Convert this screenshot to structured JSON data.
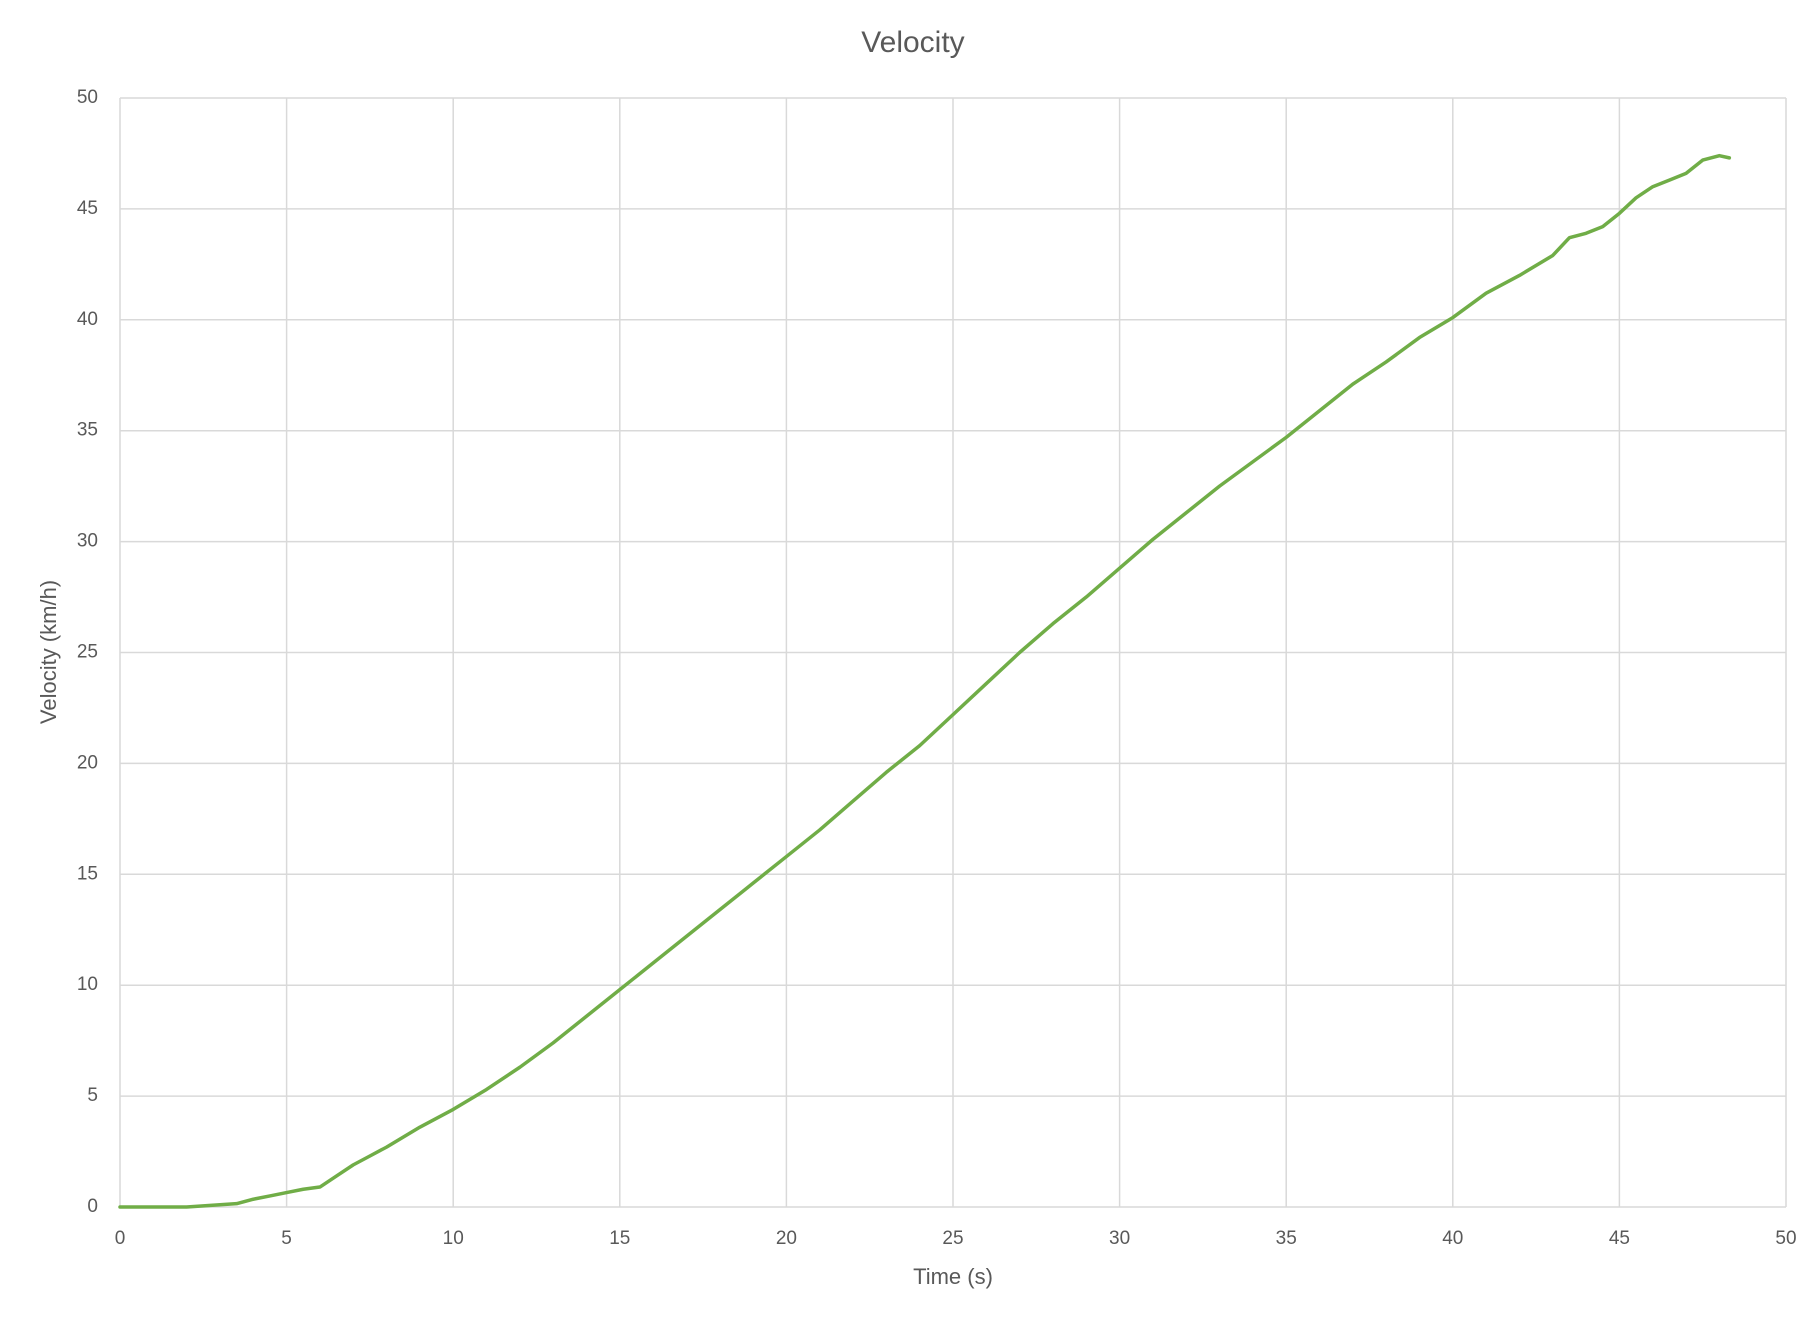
{
  "chart_data": {
    "type": "line",
    "title": "Velocity",
    "x_label": "Time (s)",
    "y_label": "Velocity (km/h)",
    "x": [
      0,
      1,
      2,
      2.5,
      3,
      3.5,
      4,
      4.5,
      5,
      5.5,
      6,
      6.5,
      7,
      7.5,
      8,
      9,
      10,
      11,
      12,
      13,
      14,
      15,
      16,
      17,
      18,
      19,
      20,
      21,
      22,
      23,
      24,
      25,
      26,
      27,
      28,
      29,
      30,
      31,
      32,
      33,
      34,
      35,
      36,
      37,
      38,
      39,
      40,
      41,
      42,
      43,
      43.5,
      44,
      44.5,
      45,
      45.5,
      46,
      46.5,
      47,
      47.5,
      48,
      48.3
    ],
    "series": [
      {
        "name": "Velocity",
        "color": "#70ad47",
        "values": [
          0,
          0,
          0,
          0.05,
          0.1,
          0.15,
          0.35,
          0.5,
          0.65,
          0.8,
          0.9,
          1.4,
          1.9,
          2.3,
          2.7,
          3.6,
          4.4,
          5.3,
          6.3,
          7.4,
          8.6,
          9.8,
          11.0,
          12.2,
          13.4,
          14.6,
          15.8,
          17.0,
          18.3,
          19.6,
          20.8,
          22.2,
          23.6,
          25.0,
          26.3,
          27.5,
          28.8,
          30.1,
          31.3,
          32.5,
          33.6,
          34.7,
          35.9,
          37.1,
          38.1,
          39.2,
          40.1,
          41.2,
          42.0,
          42.9,
          43.7,
          43.9,
          44.2,
          44.8,
          45.5,
          46.0,
          46.3,
          46.6,
          47.2,
          47.4,
          47.3
        ]
      }
    ],
    "xlim": [
      0,
      50
    ],
    "xticks": [
      0,
      5,
      10,
      15,
      20,
      25,
      30,
      35,
      40,
      45,
      50
    ],
    "ylim": [
      0,
      50
    ],
    "yticks": [
      0,
      5,
      10,
      15,
      20,
      25,
      30,
      35,
      40,
      45,
      50
    ],
    "grid": true
  }
}
